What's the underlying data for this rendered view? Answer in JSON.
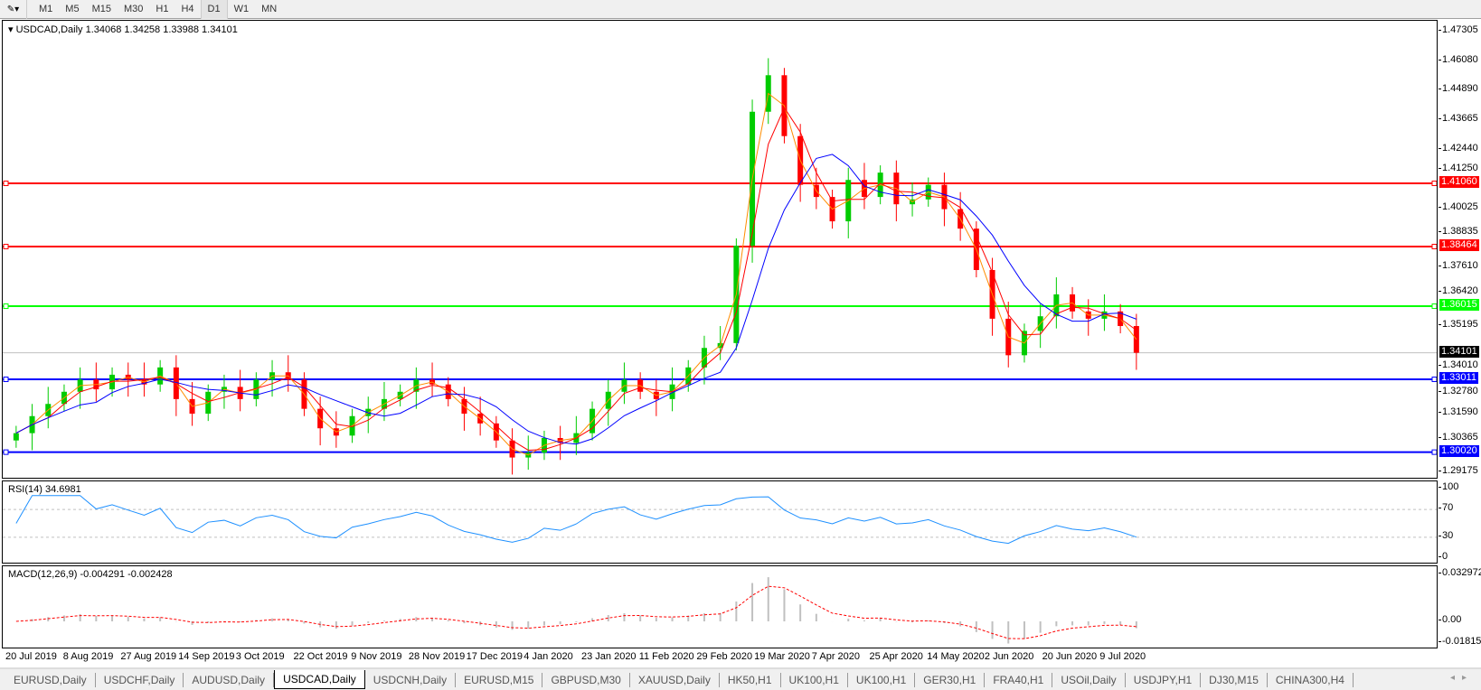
{
  "toolbar": {
    "timeframes": [
      "M1",
      "M5",
      "M15",
      "M30",
      "H1",
      "H4",
      "D1",
      "W1",
      "MN"
    ],
    "active": "D1"
  },
  "chart": {
    "header": "USDCAD,Daily  1.34068 1.34258 1.33988 1.34101",
    "symbol": "USDCAD",
    "timeframe": "Daily",
    "last_price": "1.34101",
    "price_ticks": [
      "1.47305",
      "1.46080",
      "1.44890",
      "1.43665",
      "1.42440",
      "1.41250",
      "1.40025",
      "1.38835",
      "1.37610",
      "1.36420",
      "1.35195",
      "1.34010",
      "1.32780",
      "1.31590",
      "1.30365",
      "1.29175"
    ],
    "horizontal_lines": [
      {
        "price": "1.41060",
        "color": "#ff0000"
      },
      {
        "price": "1.38464",
        "color": "#ff0000"
      },
      {
        "price": "1.36015",
        "color": "#00ff00"
      },
      {
        "price": "1.33011",
        "color": "#0000ff"
      },
      {
        "price": "1.30020",
        "color": "#0000ff"
      }
    ],
    "colors": {
      "bull": "#00cc00",
      "bear": "#ff0000",
      "ma_fast": "#ff8c00",
      "ma_mid": "#ff0000",
      "ma_slow": "#0000ff",
      "rsi": "#1e90ff",
      "macd_signal": "#ff0000",
      "macd_hist": "#c0c0c0"
    }
  },
  "rsi": {
    "label": "RSI(14) 34.6981",
    "ticks": [
      "100",
      "70",
      "30",
      "0"
    ]
  },
  "macd": {
    "label": "MACD(12,26,9) -0.004291 -0.002428",
    "ticks": [
      "0.032972",
      "0.00",
      "-0.01815"
    ]
  },
  "dates": [
    "20 Jul 2019",
    "8 Aug 2019",
    "27 Aug 2019",
    "14 Sep 2019",
    "3 Oct 2019",
    "22 Oct 2019",
    "9 Nov 2019",
    "28 Nov 2019",
    "17 Dec 2019",
    "4 Jan 2020",
    "23 Jan 2020",
    "11 Feb 2020",
    "29 Feb 2020",
    "19 Mar 2020",
    "7 Apr 2020",
    "25 Apr 2020",
    "14 May 2020",
    "2 Jun 2020",
    "20 Jun 2020",
    "9 Jul 2020"
  ],
  "tabs": [
    "EURUSD,Daily",
    "USDCHF,Daily",
    "AUDUSD,Daily",
    "USDCAD,Daily",
    "USDCNH,Daily",
    "EURUSD,M15",
    "GBPUSD,M30",
    "XAUUSD,Daily",
    "HK50,H1",
    "UK100,H1",
    "UK100,H1",
    "GER30,H1",
    "FRA40,H1",
    "USOil,Daily",
    "USDJPY,H1",
    "DJ30,M15",
    "CHINA300,H4"
  ],
  "active_tab": "USDCAD,Daily",
  "chart_data": {
    "type": "candlestick",
    "closes": [
      1.308,
      1.315,
      1.32,
      1.325,
      1.33,
      1.326,
      1.332,
      1.33,
      1.328,
      1.335,
      1.322,
      1.316,
      1.325,
      1.327,
      1.322,
      1.33,
      1.333,
      1.33,
      1.318,
      1.31,
      1.307,
      1.315,
      1.318,
      1.322,
      1.325,
      1.33,
      1.328,
      1.322,
      1.316,
      1.312,
      1.305,
      1.298,
      1.3,
      1.306,
      1.304,
      1.308,
      1.318,
      1.325,
      1.33,
      1.325,
      1.322,
      1.328,
      1.335,
      1.343,
      1.345,
      1.385,
      1.44,
      1.455,
      1.43,
      1.41,
      1.405,
      1.395,
      1.412,
      1.405,
      1.415,
      1.402,
      1.404,
      1.41,
      1.4,
      1.392,
      1.375,
      1.355,
      1.34,
      1.35,
      1.356,
      1.365,
      1.358,
      1.355,
      1.358,
      1.352,
      1.341
    ],
    "ylim": [
      1.29175,
      1.47305
    ]
  }
}
